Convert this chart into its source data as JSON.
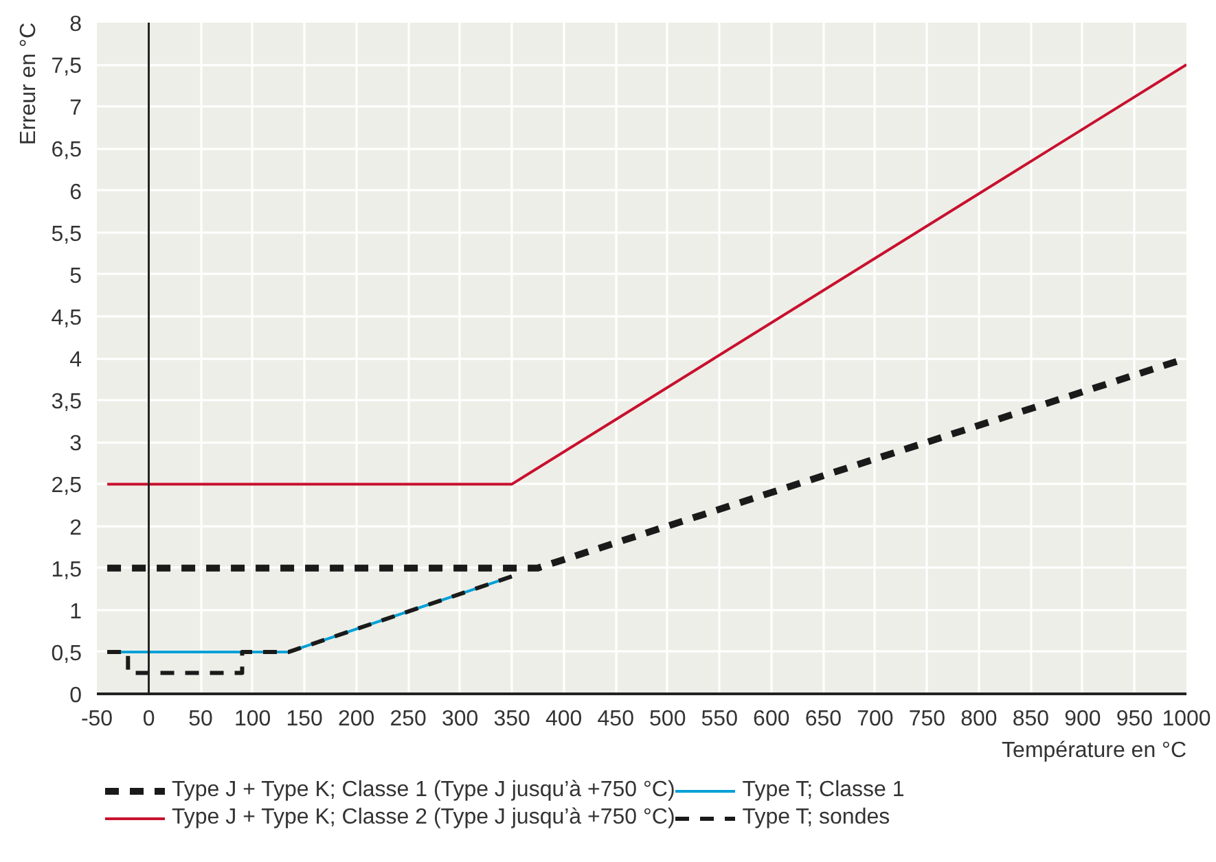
{
  "chart_data": {
    "type": "line",
    "xlabel": "Température en °C",
    "ylabel": "Erreur en °C",
    "xlim": [
      -50,
      1000
    ],
    "ylim": [
      0,
      8
    ],
    "xticks": [
      -50,
      0,
      50,
      100,
      150,
      200,
      250,
      300,
      350,
      400,
      450,
      500,
      550,
      600,
      650,
      700,
      750,
      800,
      850,
      900,
      950,
      1000
    ],
    "yticks": [
      0,
      {
        "value": 0.5,
        "label": "0,5"
      },
      1,
      {
        "value": 1.5,
        "label": "1,5"
      },
      2,
      {
        "value": 2.5,
        "label": "2,5"
      },
      3,
      {
        "value": 3.5,
        "label": "3,5"
      },
      4,
      {
        "value": 4.5,
        "label": "4,5"
      },
      5,
      {
        "value": 5.5,
        "label": "5,5"
      },
      6,
      {
        "value": 6.5,
        "label": "6,5"
      },
      7,
      {
        "value": 7.5,
        "label": "7,5"
      },
      8
    ],
    "grid": true,
    "legend": "bottom",
    "marker": "none",
    "series": [
      {
        "name": "Type J + Type K; Classe 1 (Type J jusqu’à +750 °C)",
        "color": "#1a1a1a",
        "line_style": "dashed",
        "x": [
          -40,
          375,
          1000
        ],
        "values": [
          1.5,
          1.5,
          4
        ]
      },
      {
        "name": "Type J + Type K; Classe 2 (Type J jusqu’à +750 °C)",
        "color": "#c8102e",
        "line_style": "solid",
        "x": [
          -40,
          350,
          1000
        ],
        "values": [
          2.5,
          2.5,
          7.5
        ]
      },
      {
        "name": "Type T; Classe 1",
        "color": "#00a0d6",
        "line_style": "solid",
        "x": [
          -40,
          135,
          350
        ],
        "values": [
          0.5,
          0.5,
          1.4
        ]
      },
      {
        "name": "Type T; sondes",
        "color": "#1a1a1a",
        "line_style": "dashed",
        "x": [
          -40,
          -20,
          -20,
          90,
          90,
          135,
          350
        ],
        "values": [
          0.5,
          0.5,
          0.25,
          0.25,
          0.5,
          0.5,
          1.4
        ]
      }
    ]
  }
}
